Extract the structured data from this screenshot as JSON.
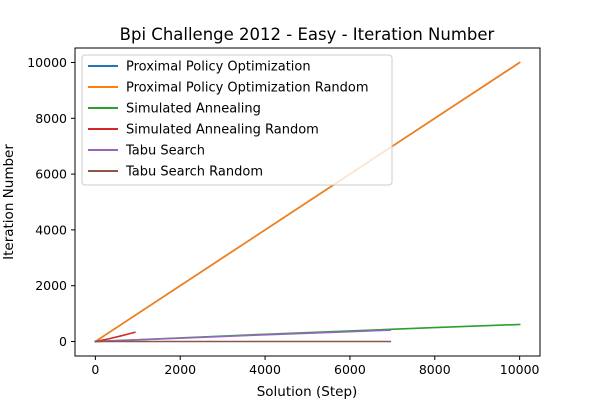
{
  "chart_data": {
    "type": "line",
    "title": "Bpi Challenge 2012 - Easy - Iteration Number",
    "xlabel": "Solution (Step)",
    "ylabel": "Iteration Number",
    "xlim": [
      -480,
      10480
    ],
    "ylim": [
      -520,
      10520
    ],
    "xticks": [
      0,
      2000,
      4000,
      6000,
      8000,
      10000
    ],
    "yticks": [
      0,
      2000,
      4000,
      6000,
      8000,
      10000
    ],
    "xtick_labels": [
      "0",
      "2000",
      "4000",
      "6000",
      "8000",
      "10000"
    ],
    "ytick_labels": [
      "0",
      "2000",
      "4000",
      "6000",
      "8000",
      "10000"
    ],
    "grid": false,
    "legend_position": "upper-left",
    "series": [
      {
        "name": "Proximal Policy Optimization",
        "color": "#1f77b4",
        "x": [
          0,
          10000
        ],
        "y": [
          0,
          10000
        ]
      },
      {
        "name": "Proximal Policy Optimization Random",
        "color": "#ff7f0e",
        "x": [
          0,
          10000
        ],
        "y": [
          0,
          10000
        ]
      },
      {
        "name": "Simulated Annealing",
        "color": "#2ca02c",
        "x": [
          0,
          2000,
          4000,
          6000,
          8000,
          10000
        ],
        "y": [
          0,
          130,
          260,
          380,
          500,
          610
        ]
      },
      {
        "name": "Simulated Annealing Random",
        "color": "#d62728",
        "x": [
          0,
          300,
          600,
          930
        ],
        "y": [
          0,
          90,
          200,
          330
        ]
      },
      {
        "name": "Tabu Search",
        "color": "#9467bd",
        "x": [
          0,
          2000,
          4000,
          6000,
          6950
        ],
        "y": [
          0,
          120,
          240,
          350,
          410
        ]
      },
      {
        "name": "Tabu Search Random",
        "color": "#8c564b",
        "x": [
          0,
          6950
        ],
        "y": [
          0,
          0
        ]
      }
    ]
  }
}
